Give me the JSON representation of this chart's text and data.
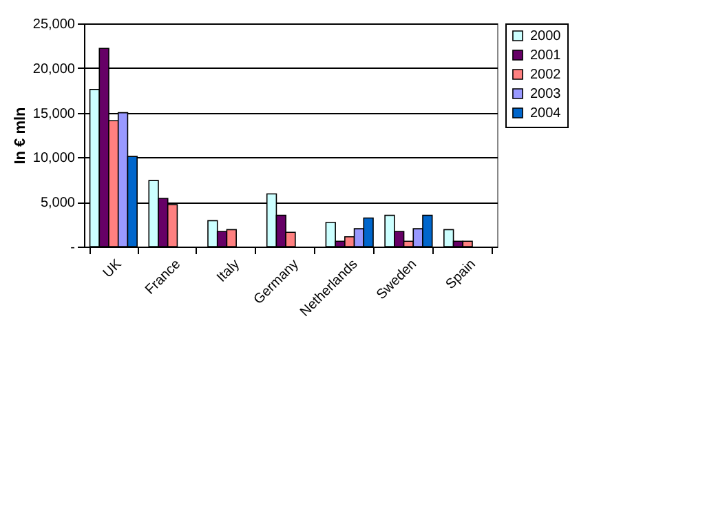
{
  "chart_data": {
    "type": "bar",
    "ylabel": "In € mln",
    "categories": [
      "UK",
      "France",
      "Italy",
      "Germany",
      "Netherlands",
      "Sweden",
      "Spain"
    ],
    "series": [
      {
        "name": "2000",
        "color": "#ccffff",
        "values": [
          17600,
          7400,
          2900,
          5900,
          2700,
          3500,
          1900
        ]
      },
      {
        "name": "2001",
        "color": "#660066",
        "values": [
          22200,
          5400,
          1700,
          3500,
          600,
          1700,
          600
        ]
      },
      {
        "name": "2002",
        "color": "#ff8080",
        "values": [
          14100,
          4700,
          1900,
          1600,
          1100,
          600,
          600
        ]
      },
      {
        "name": "2003",
        "color": "#9999ff",
        "values": [
          15000,
          null,
          null,
          null,
          2000,
          2000,
          null
        ]
      },
      {
        "name": "2004",
        "color": "#0066cc",
        "values": [
          10100,
          null,
          null,
          null,
          3200,
          3500,
          null
        ]
      }
    ],
    "ylim": [
      0,
      25000
    ],
    "yticks": [
      {
        "value": 0,
        "label": "-"
      },
      {
        "value": 5000,
        "label": "5,000"
      },
      {
        "value": 10000,
        "label": "10,000"
      },
      {
        "value": 15000,
        "label": "15,000"
      },
      {
        "value": 20000,
        "label": "20,000"
      },
      {
        "value": 25000,
        "label": "25,000"
      }
    ],
    "grid": "y",
    "legend": "right"
  }
}
